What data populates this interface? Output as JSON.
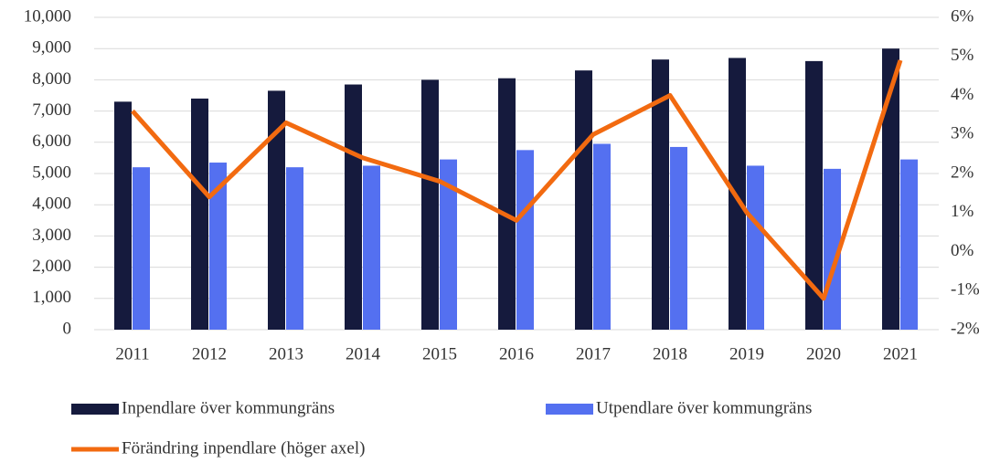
{
  "chart_data": {
    "type": "bar",
    "categories": [
      "2011",
      "2012",
      "2013",
      "2014",
      "2015",
      "2016",
      "2017",
      "2018",
      "2019",
      "2020",
      "2021"
    ],
    "series": [
      {
        "name": "Inpendlare över kommungräns",
        "color": "#151a3d",
        "type": "bar",
        "values": [
          7300,
          7400,
          7650,
          7850,
          8000,
          8050,
          8300,
          8650,
          8700,
          8600,
          9000
        ]
      },
      {
        "name": "Utpendlare över kommungräns",
        "color": "#5470f0",
        "type": "bar",
        "values": [
          5200,
          5350,
          5200,
          5250,
          5450,
          5750,
          5950,
          5850,
          5250,
          5150,
          5450
        ]
      },
      {
        "name": "Förändring inpendlare (höger axel)",
        "color": "#f26a10",
        "type": "line",
        "axis": "y2",
        "values": [
          3.6,
          1.4,
          3.3,
          2.4,
          1.8,
          0.8,
          3.0,
          4.0,
          1.0,
          -1.2,
          4.9
        ]
      }
    ],
    "ylim": [
      0,
      10000
    ],
    "yticks": [
      0,
      {
        "value": 1000,
        "label": "1,000"
      },
      {
        "value": 2000,
        "label": "2,000"
      },
      {
        "value": 3000,
        "label": "3,000"
      },
      {
        "value": 4000,
        "label": "4,000"
      },
      {
        "value": 5000,
        "label": "5,000"
      },
      {
        "value": 6000,
        "label": "6,000"
      },
      {
        "value": 7000,
        "label": "7,000"
      },
      {
        "value": 8000,
        "label": "8,000"
      },
      {
        "value": 9000,
        "label": "9,000"
      },
      {
        "value": 10000,
        "label": "10,000"
      }
    ],
    "y2lim": [
      -2,
      6
    ],
    "y2ticks": [
      {
        "value": -2,
        "label": "-2%"
      },
      {
        "value": -1,
        "label": "-1%"
      },
      {
        "value": 0,
        "label": "0%"
      },
      {
        "value": 1,
        "label": "1%"
      },
      {
        "value": 2,
        "label": "2%"
      },
      {
        "value": 3,
        "label": "3%"
      },
      {
        "value": 4,
        "label": "4%"
      },
      {
        "value": 5,
        "label": "5%"
      },
      {
        "value": 6,
        "label": "6%"
      }
    ],
    "grid": true,
    "legend": "bottom"
  }
}
